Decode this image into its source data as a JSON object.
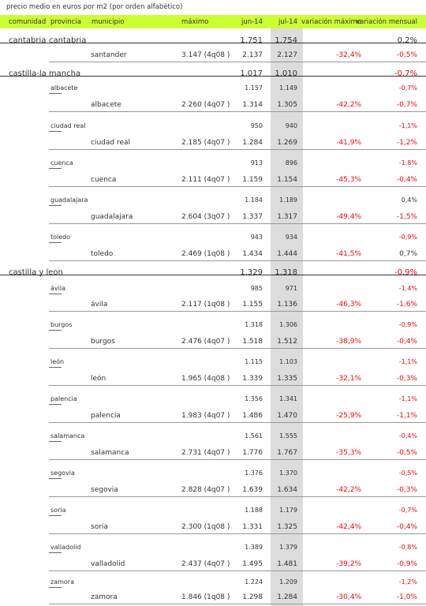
{
  "caption": "precio medio en euros por m2 (por orden alfabético)",
  "headers": {
    "comunidad": "comunidad",
    "provincia": "provincia",
    "municipio": "municipio",
    "maximo": "máximo",
    "jun": "jun-14",
    "jul": "jul-14",
    "var_max": "variación máximo",
    "var_mens": "variación mensual"
  },
  "rows": [
    {
      "type": "comunidad",
      "comunidad": "cantabria",
      "provincia": "cantabria",
      "jun": "1.751",
      "jul": "1.754",
      "var_mens": "0,2%",
      "var_mens_neg": false
    },
    {
      "type": "municipio",
      "municipio": "santander",
      "maximo": "3.147 (4q08 )",
      "jun": "2.137",
      "jul": "2.127",
      "var_max": "-32,4%",
      "var_mens": "-0,5%",
      "var_mens_neg": true
    },
    {
      "type": "comunidad",
      "comunidad": "castilla-la mancha",
      "jun": "1.017",
      "jul": "1.010",
      "var_mens": "-0,7%",
      "var_mens_neg": true
    },
    {
      "type": "provincia",
      "provincia": "albacete",
      "jun": "1.157",
      "jul": "1.149",
      "var_mens": "-0,7%",
      "var_mens_neg": true
    },
    {
      "type": "municipio",
      "municipio": "albacete",
      "maximo": "2.260 (4q07 )",
      "jun": "1.314",
      "jul": "1.305",
      "var_max": "-42,2%",
      "var_mens": "-0,7%",
      "var_mens_neg": true
    },
    {
      "type": "provincia",
      "provincia": "ciudad real",
      "jun": "950",
      "jul": "940",
      "var_mens": "-1,1%",
      "var_mens_neg": true
    },
    {
      "type": "municipio",
      "municipio": "ciudad real",
      "maximo": "2.185 (4q07 )",
      "jun": "1.284",
      "jul": "1.269",
      "var_max": "-41,9%",
      "var_mens": "-1,2%",
      "var_mens_neg": true
    },
    {
      "type": "provincia",
      "provincia": "cuenca",
      "jun": "913",
      "jul": "896",
      "var_mens": "-1,8%",
      "var_mens_neg": true
    },
    {
      "type": "municipio",
      "municipio": "cuenca",
      "maximo": "2.111 (4q07 )",
      "jun": "1.159",
      "jul": "1.154",
      "var_max": "-45,3%",
      "var_mens": "-0,4%",
      "var_mens_neg": true
    },
    {
      "type": "provincia",
      "provincia": "guadalajara",
      "jun": "1.184",
      "jul": "1.189",
      "var_mens": "0,4%",
      "var_mens_neg": false
    },
    {
      "type": "municipio",
      "municipio": "guadalajara",
      "maximo": "2.604 (3q07 )",
      "jun": "1.337",
      "jul": "1.317",
      "var_max": "-49,4%",
      "var_mens": "-1,5%",
      "var_mens_neg": true
    },
    {
      "type": "provincia",
      "provincia": "toledo",
      "jun": "943",
      "jul": "934",
      "var_mens": "-0,9%",
      "var_mens_neg": true
    },
    {
      "type": "municipio",
      "municipio": "toledo",
      "maximo": "2.469 (1q08 )",
      "jun": "1.434",
      "jul": "1.444",
      "var_max": "-41,5%",
      "var_mens": "0,7%",
      "var_mens_neg": false
    },
    {
      "type": "comunidad",
      "comunidad": "castilla y leon",
      "jun": "1.329",
      "jul": "1.318",
      "var_mens": "-0,9%",
      "var_mens_neg": true
    },
    {
      "type": "provincia",
      "provincia": "ávila",
      "jun": "985",
      "jul": "971",
      "var_mens": "-1,4%",
      "var_mens_neg": true
    },
    {
      "type": "municipio",
      "municipio": "ávila",
      "maximo": "2.117 (1q08 )",
      "jun": "1.155",
      "jul": "1.136",
      "var_max": "-46,3%",
      "var_mens": "-1,6%",
      "var_mens_neg": true
    },
    {
      "type": "provincia",
      "provincia": "burgos",
      "jun": "1.318",
      "jul": "1.306",
      "var_mens": "-0,9%",
      "var_mens_neg": true
    },
    {
      "type": "municipio",
      "municipio": "burgos",
      "maximo": "2.476 (4q07 )",
      "jun": "1.518",
      "jul": "1.512",
      "var_max": "-38,9%",
      "var_mens": "-0,4%",
      "var_mens_neg": true
    },
    {
      "type": "provincia",
      "provincia": "león",
      "jun": "1.115",
      "jul": "1.103",
      "var_mens": "-1,1%",
      "var_mens_neg": true
    },
    {
      "type": "municipio",
      "municipio": "león",
      "maximo": "1.965 (4q08 )",
      "jun": "1.339",
      "jul": "1.335",
      "var_max": "-32,1%",
      "var_mens": "-0,3%",
      "var_mens_neg": true
    },
    {
      "type": "provincia",
      "provincia": "palencia",
      "jun": "1.356",
      "jul": "1.341",
      "var_mens": "-1,1%",
      "var_mens_neg": true
    },
    {
      "type": "municipio",
      "municipio": "palencia",
      "maximo": "1.983 (4q07 )",
      "jun": "1.486",
      "jul": "1.470",
      "var_max": "-25,9%",
      "var_mens": "-1,1%",
      "var_mens_neg": true
    },
    {
      "type": "provincia",
      "provincia": "salamanca",
      "jun": "1.561",
      "jul": "1.555",
      "var_mens": "-0,4%",
      "var_mens_neg": true
    },
    {
      "type": "municipio",
      "municipio": "salamanca",
      "maximo": "2.731 (4q07 )",
      "jun": "1.776",
      "jul": "1.767",
      "var_max": "-35,3%",
      "var_mens": "-0,5%",
      "var_mens_neg": true
    },
    {
      "type": "provincia",
      "provincia": "segovia",
      "jun": "1.376",
      "jul": "1.370",
      "var_mens": "-0,5%",
      "var_mens_neg": true
    },
    {
      "type": "municipio",
      "municipio": "segovia",
      "maximo": "2.828 (4q07 )",
      "jun": "1.639",
      "jul": "1.634",
      "var_max": "-42,2%",
      "var_mens": "-0,3%",
      "var_mens_neg": true
    },
    {
      "type": "provincia",
      "provincia": "soria",
      "jun": "1.188",
      "jul": "1.179",
      "var_mens": "-0,7%",
      "var_mens_neg": true
    },
    {
      "type": "municipio",
      "municipio": "soria",
      "maximo": "2.300 (1q08 )",
      "jun": "1.331",
      "jul": "1.325",
      "var_max": "-42,4%",
      "var_mens": "-0,4%",
      "var_mens_neg": true
    },
    {
      "type": "provincia",
      "provincia": "valladolid",
      "jun": "1.389",
      "jul": "1.379",
      "var_mens": "-0,8%",
      "var_mens_neg": true
    },
    {
      "type": "municipio",
      "municipio": "valladolid",
      "maximo": "2.437 (4q07 )",
      "jun": "1.495",
      "jul": "1.481",
      "var_max": "-39,2%",
      "var_mens": "-0,9%",
      "var_mens_neg": true
    },
    {
      "type": "provincia",
      "provincia": "zamora",
      "jun": "1.224",
      "jul": "1.209",
      "var_mens": "-1,2%",
      "var_mens_neg": true
    },
    {
      "type": "municipio",
      "municipio": "zamora",
      "maximo": "1.846 (1q08 )",
      "jun": "1.298",
      "jul": "1.284",
      "var_max": "-30,4%",
      "var_mens": "-1,0%",
      "var_mens_neg": true
    }
  ]
}
